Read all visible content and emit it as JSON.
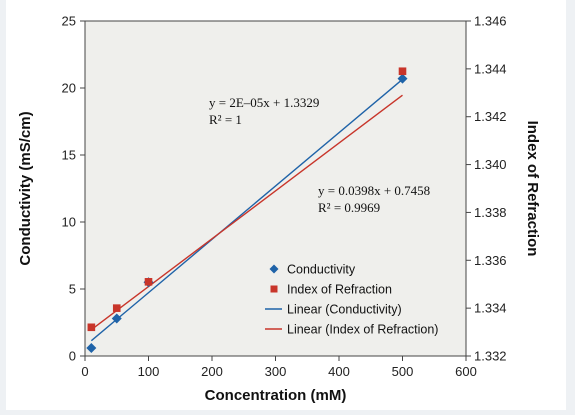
{
  "colors": {
    "conductivity": "#1f63a8",
    "refraction": "#c8352a",
    "plot_background": "#efefec"
  },
  "chart_data": {
    "type": "scatter",
    "xlabel": "Concentration (mM)",
    "ylabel": "Conductivity (mS/cm)",
    "y2label": "Index of Refraction",
    "xlim": [
      0,
      600
    ],
    "ylim": [
      0,
      25
    ],
    "y2lim": [
      1.332,
      1.346
    ],
    "xticks": [
      "0",
      "100",
      "200",
      "300",
      "400",
      "500",
      "600"
    ],
    "yticks": [
      "0",
      "5",
      "10",
      "15",
      "20",
      "25"
    ],
    "y2ticks": [
      "1.332",
      "1.334",
      "1.336",
      "1.338",
      "1.340",
      "1.342",
      "1.344",
      "1.346"
    ],
    "grid": false,
    "legend_position": "lower-right",
    "series": [
      {
        "name": "Conductivity",
        "axis": "left",
        "marker": "diamond",
        "x": [
          10,
          50,
          100,
          500
        ],
        "y": [
          0.6,
          2.8,
          5.5,
          20.7
        ]
      },
      {
        "name": "Index of Refraction",
        "axis": "right",
        "marker": "square",
        "x": [
          10,
          50,
          100,
          500
        ],
        "y": [
          1.3332,
          1.334,
          1.3351,
          1.3439
        ]
      }
    ],
    "trendlines": [
      {
        "name": "Linear (Conductivity)",
        "axis": "left",
        "slope": 0.0398,
        "intercept": 0.7458,
        "x_range": [
          10,
          500
        ],
        "equation": "y = 0.0398x + 0.7458",
        "r2": "R² = 0.9969"
      },
      {
        "name": "Linear (Index of Refraction)",
        "axis": "right",
        "slope": 2e-05,
        "intercept": 1.3329,
        "x_range": [
          10,
          500
        ],
        "equation": "y = 2E–05x + 1.3329",
        "r2": "R² = 1"
      }
    ]
  }
}
